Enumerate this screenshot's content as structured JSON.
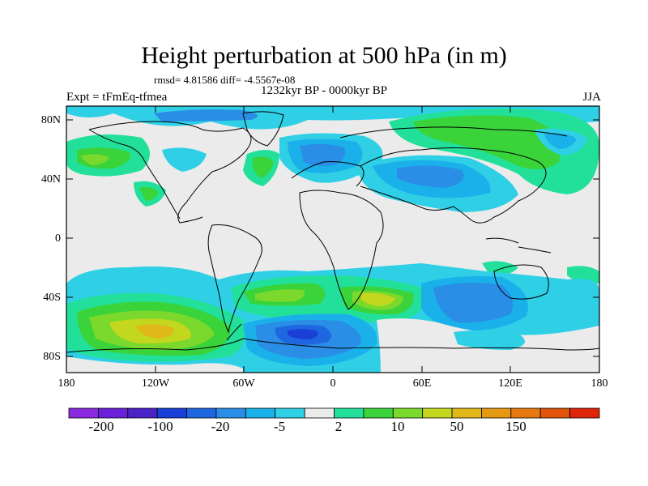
{
  "title": "Height perturbation at 500 hPa (in m)",
  "stats_text": "rmsd= 4.81586 diff= -4.5567e-08",
  "period_text": "1232kyr BP - 0000kyr BP",
  "experiment_text": "Expt = tFmEq-tfmea",
  "season_text": "JJA",
  "lat_ticks": [
    "80N",
    "40N",
    "0",
    "40S",
    "80S"
  ],
  "lon_ticks": [
    "180",
    "120W",
    "60W",
    "0",
    "60E",
    "120E",
    "180"
  ],
  "colorbar": {
    "colors": [
      "#8a2be2",
      "#6a1fd8",
      "#4b22c8",
      "#1a3fd6",
      "#1f67e0",
      "#2a8de6",
      "#1ab1ea",
      "#2fd0e6",
      "#ebebeb",
      "#22e09a",
      "#3ad33a",
      "#7bd82c",
      "#c3d71e",
      "#e0b81a",
      "#e59812",
      "#e5780e",
      "#e2530b",
      "#e0260a"
    ],
    "labels": [
      "-200",
      "-100",
      "-20",
      "-5",
      "2",
      "10",
      "50",
      "150"
    ]
  }
}
